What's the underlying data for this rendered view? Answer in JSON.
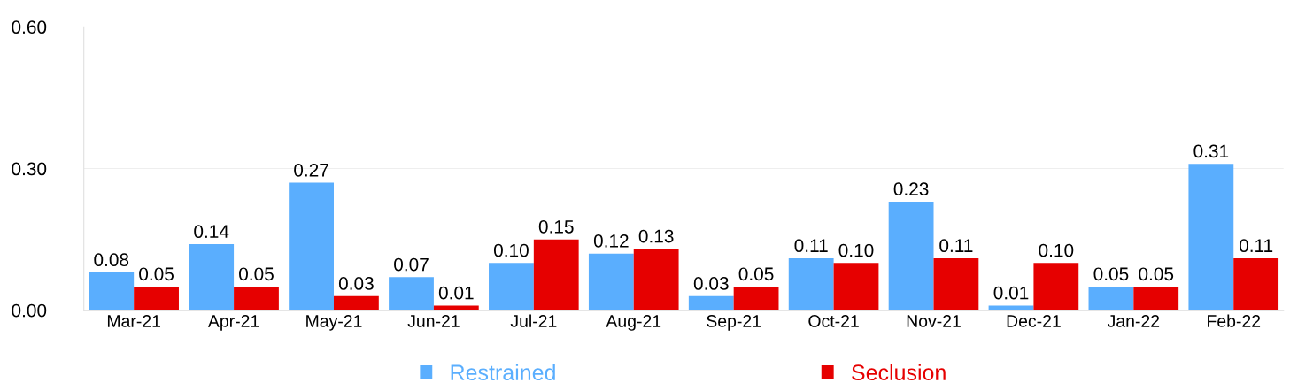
{
  "chart_data": {
    "type": "bar",
    "categories": [
      "Mar-21",
      "Apr-21",
      "May-21",
      "Jun-21",
      "Jul-21",
      "Aug-21",
      "Sep-21",
      "Oct-21",
      "Nov-21",
      "Dec-21",
      "Jan-22",
      "Feb-22"
    ],
    "series": [
      {
        "name": "Restrained",
        "color": "#5aaefe",
        "values": [
          0.08,
          0.14,
          0.27,
          0.07,
          0.1,
          0.12,
          0.03,
          0.11,
          0.23,
          0.01,
          0.05,
          0.31
        ],
        "value_labels": [
          "0.08",
          "0.14",
          "0.27",
          "0.07",
          "0.10",
          "0.12",
          "0.03",
          "0.11",
          "0.23",
          "0.01",
          "0.05",
          "0.31"
        ]
      },
      {
        "name": "Seclusion",
        "color": "#e60000",
        "values": [
          0.05,
          0.05,
          0.03,
          0.01,
          0.15,
          0.13,
          0.05,
          0.1,
          0.11,
          0.1,
          0.05,
          0.11
        ],
        "value_labels": [
          "0.05",
          "0.05",
          "0.03",
          "0.01",
          "0.15",
          "0.13",
          "0.05",
          "0.10",
          "0.11",
          "0.10",
          "0.05",
          "0.11"
        ]
      }
    ],
    "ylim": [
      0,
      0.6
    ],
    "yticks": [
      {
        "value": 0,
        "label": "0.00"
      },
      {
        "value": 0.3,
        "label": "0.30"
      },
      {
        "value": 0.6,
        "label": "0.60"
      }
    ],
    "grid": "y",
    "legend": "bottom"
  }
}
